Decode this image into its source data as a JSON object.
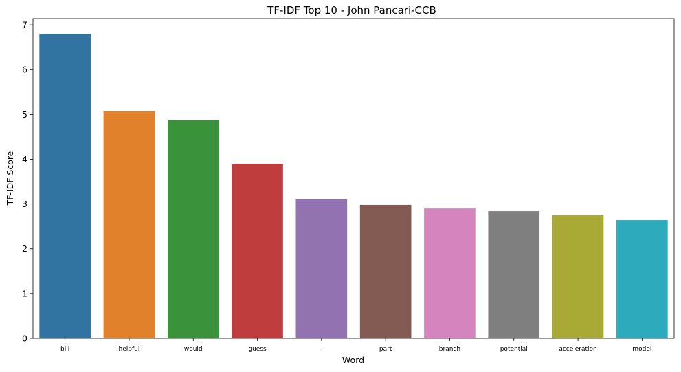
{
  "chart_data": {
    "type": "bar",
    "title": "TF-IDF Top 10 - John Pancari-CCB",
    "xlabel": "Word",
    "ylabel": "TF-IDF Score",
    "categories": [
      "bill",
      "helpful",
      "would",
      "guess",
      "–",
      "part",
      "branch",
      "potential",
      "acceleration",
      "model"
    ],
    "values": [
      6.8,
      5.07,
      4.87,
      3.9,
      3.11,
      2.98,
      2.9,
      2.84,
      2.75,
      2.64
    ],
    "colors": [
      "#3274a1",
      "#e1812c",
      "#3a923a",
      "#c03d3e",
      "#9372b2",
      "#845b53",
      "#d684bd",
      "#7f7f7f",
      "#a9aa35",
      "#2eaabd"
    ],
    "yticks": [
      0,
      1,
      2,
      3,
      4,
      5,
      6,
      7
    ],
    "ylim": [
      0,
      7.14
    ],
    "grid": false,
    "legend": "none"
  }
}
